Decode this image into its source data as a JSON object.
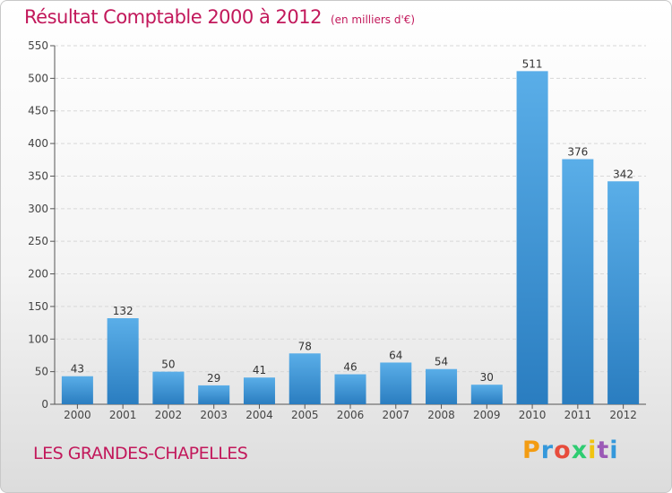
{
  "title": {
    "main": "Résultat Comptable 2000 à 2012",
    "unit": "(en milliers d'€)"
  },
  "place": "LES GRANDES-CHAPELLES",
  "logo": {
    "text": "Proxiti",
    "colors": [
      "#f39c12",
      "#3498db",
      "#e74c3c",
      "#2ecc71",
      "#f1c40f",
      "#9b59b6",
      "#3498db"
    ]
  },
  "colors": {
    "bar_top": "#5aaee8",
    "bar_bottom": "#2a7dc0",
    "accent": "#c2185b",
    "grid": "#d8d8d8"
  },
  "chart_data": {
    "type": "bar",
    "categories": [
      "2000",
      "2001",
      "2002",
      "2003",
      "2004",
      "2005",
      "2006",
      "2007",
      "2008",
      "2009",
      "2010",
      "2011",
      "2012"
    ],
    "values": [
      43,
      132,
      50,
      29,
      41,
      78,
      46,
      64,
      54,
      30,
      511,
      376,
      342
    ],
    "data_labels": [
      "43",
      "132",
      "50",
      "29",
      "41",
      "78",
      "46",
      "64",
      "54",
      "30",
      "511",
      "376",
      "342"
    ],
    "yticks": [
      "0",
      "50",
      "100",
      "150",
      "200",
      "250",
      "300",
      "350",
      "400",
      "450",
      "500",
      "550"
    ],
    "ylim": [
      0,
      550
    ],
    "grid": true,
    "legend": "none",
    "title": "Résultat Comptable 2000 à 2012",
    "xlabel": "",
    "ylabel": ""
  }
}
